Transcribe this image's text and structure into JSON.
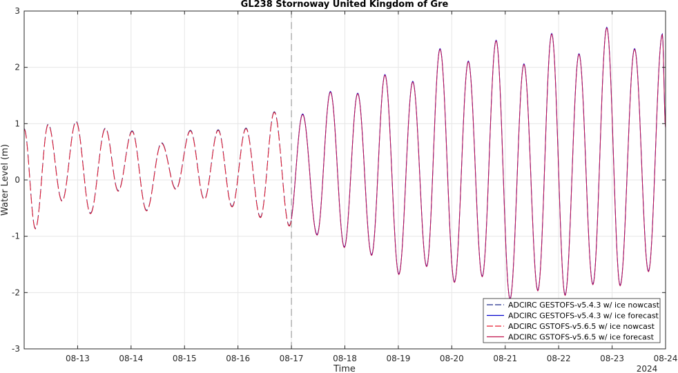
{
  "chart_data": {
    "type": "line",
    "title": "GL238 Stornoway United Kingdom of Gre",
    "xlabel": "Time",
    "ylabel": "Water Level (m)",
    "year_label": "2024",
    "ylim": [
      -3,
      3
    ],
    "xlim": [
      12.0,
      24.0
    ],
    "y_ticks": [
      -3,
      -2,
      -1,
      0,
      1,
      2,
      3
    ],
    "x_ticks": [
      {
        "x": 13,
        "label": "08-13"
      },
      {
        "x": 14,
        "label": "08-14"
      },
      {
        "x": 15,
        "label": "08-15"
      },
      {
        "x": 16,
        "label": "08-16"
      },
      {
        "x": 17,
        "label": "08-17"
      },
      {
        "x": 18,
        "label": "08-18"
      },
      {
        "x": 19,
        "label": "08-19"
      },
      {
        "x": 20,
        "label": "08-20"
      },
      {
        "x": 21,
        "label": "08-21"
      },
      {
        "x": 22,
        "label": "08-22"
      },
      {
        "x": 23,
        "label": "08-23"
      },
      {
        "x": 24,
        "label": "08-24"
      }
    ],
    "nowcast_forecast_boundary": 17,
    "extrema": [
      {
        "x": 12.0,
        "y": 0.9
      },
      {
        "x": 12.21,
        "y": -0.87
      },
      {
        "x": 12.45,
        "y": 0.98
      },
      {
        "x": 12.71,
        "y": -0.38
      },
      {
        "x": 12.97,
        "y": 1.03
      },
      {
        "x": 13.24,
        "y": -0.6
      },
      {
        "x": 13.52,
        "y": 0.91
      },
      {
        "x": 13.76,
        "y": -0.2
      },
      {
        "x": 14.02,
        "y": 0.86
      },
      {
        "x": 14.29,
        "y": -0.55
      },
      {
        "x": 14.57,
        "y": 0.65
      },
      {
        "x": 14.84,
        "y": -0.17
      },
      {
        "x": 15.11,
        "y": 0.87
      },
      {
        "x": 15.37,
        "y": -0.35
      },
      {
        "x": 15.63,
        "y": 0.88
      },
      {
        "x": 15.89,
        "y": -0.48
      },
      {
        "x": 16.15,
        "y": 0.91
      },
      {
        "x": 16.42,
        "y": -0.67
      },
      {
        "x": 16.68,
        "y": 1.2
      },
      {
        "x": 16.96,
        "y": -0.82
      },
      {
        "x": 17.21,
        "y": 1.16
      },
      {
        "x": 17.48,
        "y": -0.98
      },
      {
        "x": 17.73,
        "y": 1.56
      },
      {
        "x": 17.99,
        "y": -1.2
      },
      {
        "x": 18.24,
        "y": 1.53
      },
      {
        "x": 18.5,
        "y": -1.34
      },
      {
        "x": 18.75,
        "y": 1.86
      },
      {
        "x": 19.01,
        "y": -1.68
      },
      {
        "x": 19.27,
        "y": 1.74
      },
      {
        "x": 19.53,
        "y": -1.54
      },
      {
        "x": 19.78,
        "y": 2.32
      },
      {
        "x": 20.05,
        "y": -1.82
      },
      {
        "x": 20.31,
        "y": 2.1
      },
      {
        "x": 20.57,
        "y": -1.72
      },
      {
        "x": 20.83,
        "y": 2.47
      },
      {
        "x": 21.09,
        "y": -2.12
      },
      {
        "x": 21.35,
        "y": 2.05
      },
      {
        "x": 21.61,
        "y": -1.97
      },
      {
        "x": 21.87,
        "y": 2.59
      },
      {
        "x": 22.12,
        "y": -2.05
      },
      {
        "x": 22.38,
        "y": 2.23
      },
      {
        "x": 22.64,
        "y": -1.86
      },
      {
        "x": 22.9,
        "y": 2.7
      },
      {
        "x": 23.15,
        "y": -1.88
      },
      {
        "x": 23.42,
        "y": 2.32
      },
      {
        "x": 23.68,
        "y": -1.63
      },
      {
        "x": 23.94,
        "y": 2.58
      },
      {
        "x": 24.0,
        "y": 0.92
      }
    ],
    "series": [
      {
        "name": "ADCIRC GESTOFS-v5.4.3 w/ ice nowcast",
        "color": "#1f2a8a",
        "dash": "dashed",
        "x_range": [
          12.0,
          17.0
        ],
        "offset": 0.012
      },
      {
        "name": "ADCIRC GESTOFS-v5.4.3 w/ ice forecast",
        "color": "#0000cc",
        "dash": "solid",
        "x_range": [
          17.0,
          24.0
        ],
        "offset": 0.012
      },
      {
        "name": "ADCIRC GSTOFS-v5.6.5 w/ ice nowcast",
        "color": "#e8192c",
        "dash": "dashed",
        "x_range": [
          12.0,
          17.0
        ],
        "offset": 0.0
      },
      {
        "name": "ADCIRC GSTOFS-v5.6.5 w/ ice forecast",
        "color": "#c0124d",
        "dash": "solid",
        "x_range": [
          17.0,
          24.0
        ],
        "offset": 0.0
      }
    ],
    "legend_position": "bottom-right"
  }
}
